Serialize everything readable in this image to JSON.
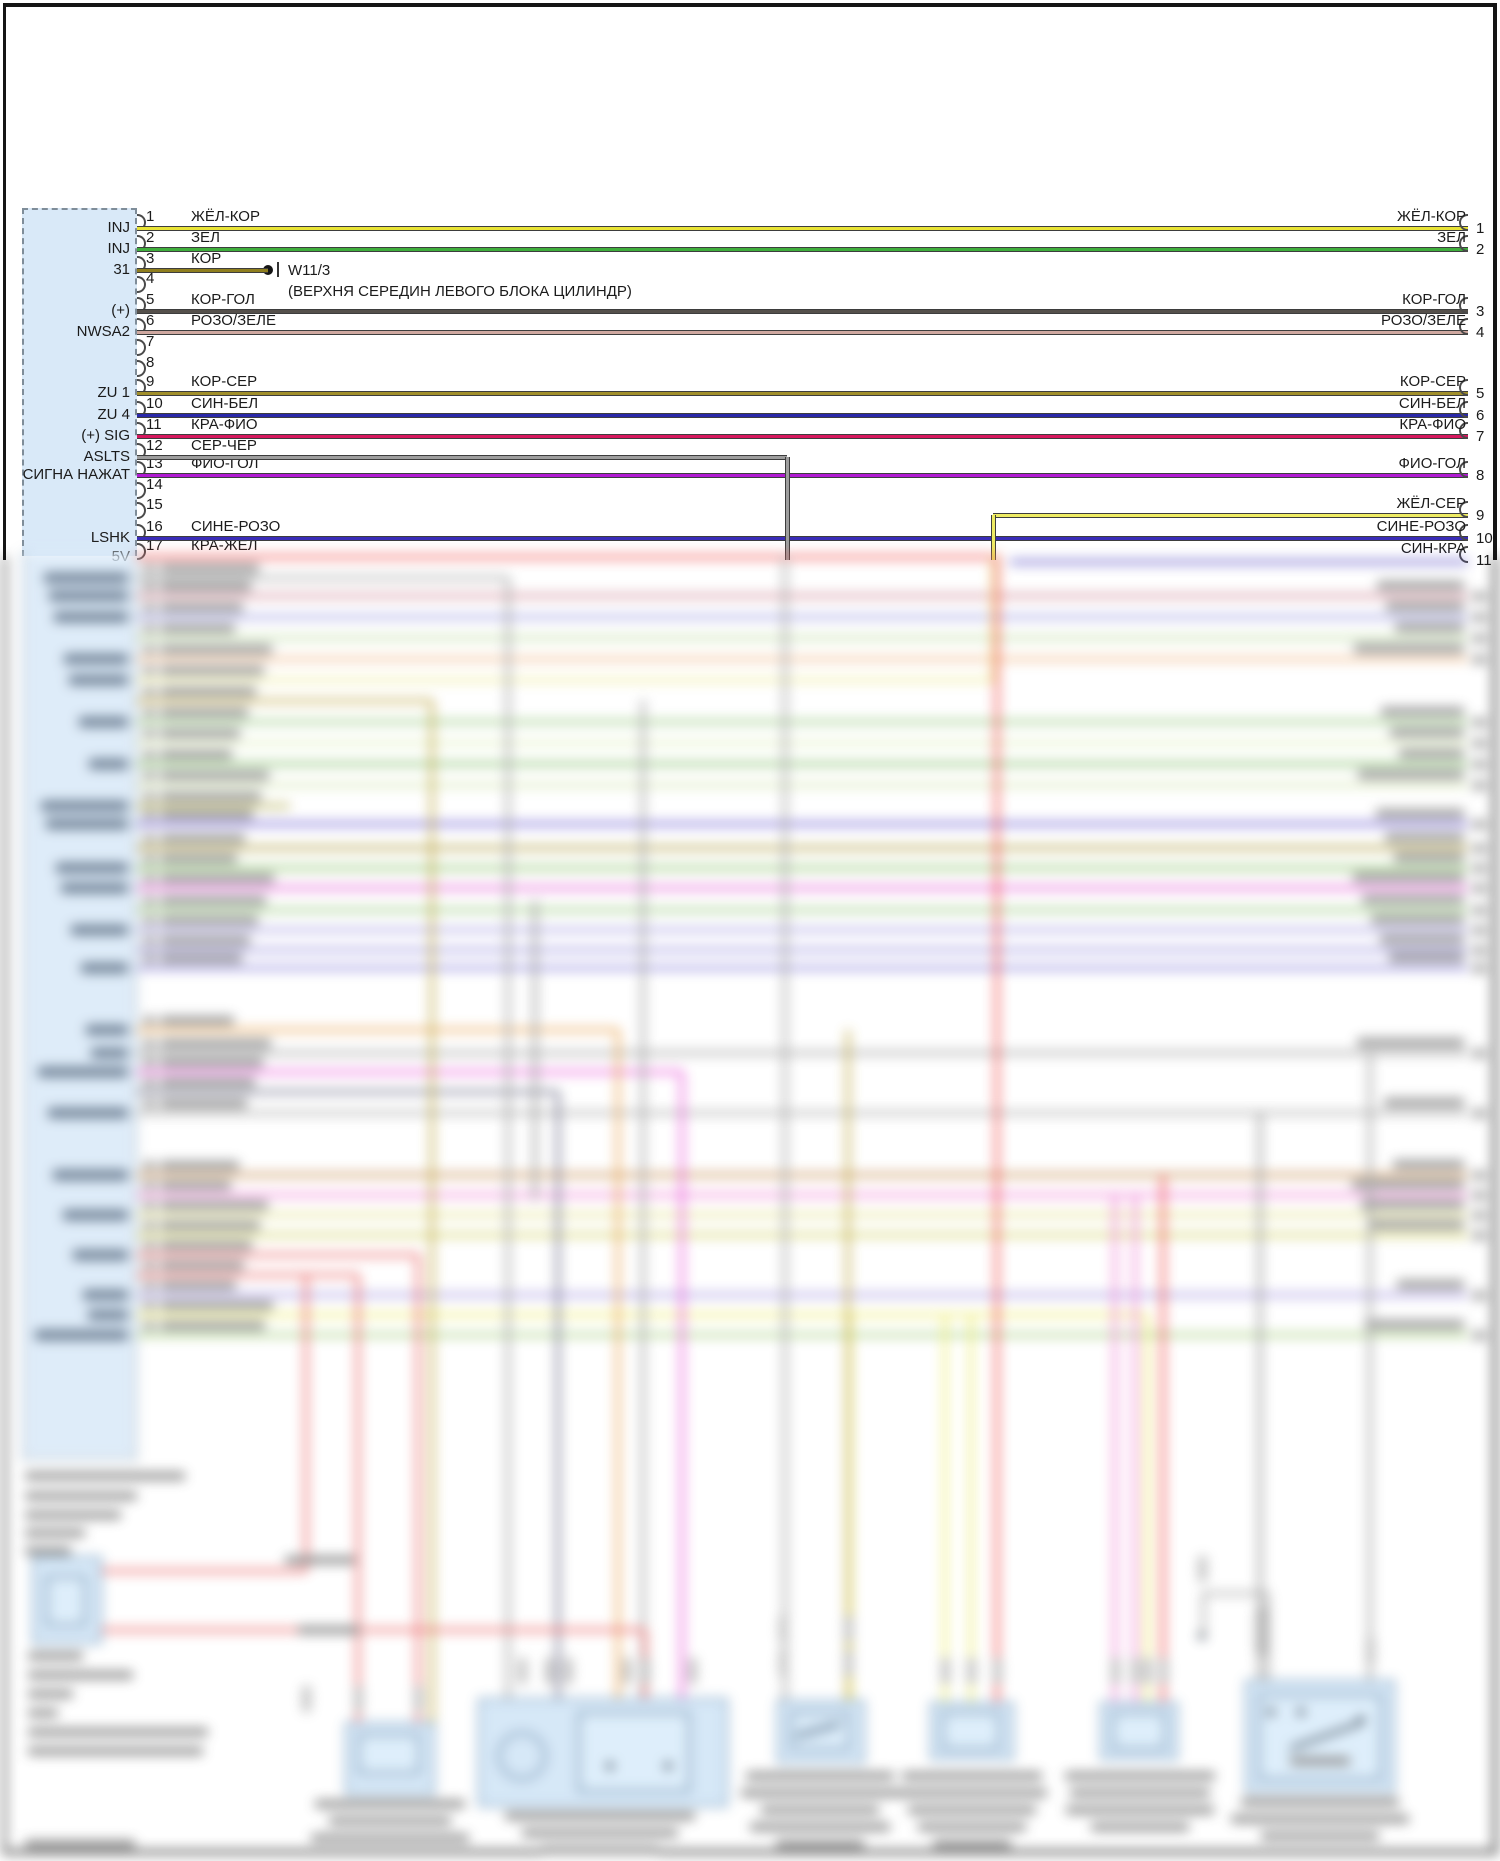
{
  "diagram": {
    "splice": {
      "code": "W11/3",
      "description": "(ВЕРХНЯ СЕРЕДИН ЛЕВОГО БЛОКА ЦИЛИНДР)"
    },
    "connector_left": {
      "fill_color": "#d9e9f8",
      "pins": [
        {
          "num": "1",
          "label": "INJ",
          "wire_name": "ЖЁЛ-КОР",
          "wire_color": "#e8e336"
        },
        {
          "num": "2",
          "label": "INJ",
          "wire_name": "ЗЕЛ",
          "wire_color": "#3fae3c"
        },
        {
          "num": "3",
          "label": "31",
          "wire_name": "КОР",
          "wire_color": "#8f7e1e"
        },
        {
          "num": "4",
          "label": "",
          "wire_name": "",
          "wire_color": ""
        },
        {
          "num": "5",
          "label": "(+)",
          "wire_name": "КОР-ГОЛ",
          "wire_color": "#55504b"
        },
        {
          "num": "6",
          "label": "NWSA2",
          "wire_name": "РОЗО/ЗЕЛЕ",
          "wire_color": "#cfa8a0"
        },
        {
          "num": "7",
          "label": "",
          "wire_name": "",
          "wire_color": ""
        },
        {
          "num": "8",
          "label": "",
          "wire_name": "",
          "wire_color": ""
        },
        {
          "num": "9",
          "label": "ZU 1",
          "wire_name": "КОР-СЕР",
          "wire_color": "#a18f2b"
        },
        {
          "num": "10",
          "label": "ZU 4",
          "wire_name": "СИН-БЕЛ",
          "wire_color": "#2a28a8"
        },
        {
          "num": "11",
          "label": "(+) SIG",
          "wire_name": "КРА-ФИО",
          "wire_color": "#d6175e"
        },
        {
          "num": "12",
          "label": "ASLTS",
          "wire_name": "СЕР-ЧЁР",
          "wire_color": "#9e9e9e"
        },
        {
          "num": "13",
          "label": "СИГНА НАЖАТ",
          "wire_name": "ФИО-ГОЛ",
          "wire_color": "#b01ad2"
        },
        {
          "num": "14",
          "label": "",
          "wire_name": "",
          "wire_color": ""
        },
        {
          "num": "15",
          "label": "",
          "wire_name": "",
          "wire_color": ""
        },
        {
          "num": "16",
          "label": "LSHK",
          "wire_name": "СИНЕ-РОЗО",
          "wire_color": "#3a2cb8"
        },
        {
          "num": "17",
          "label": "5V",
          "wire_name": "КРА-ЖЁЛ",
          "wire_color": "#ee4140"
        }
      ]
    },
    "connector_right": {
      "pins": [
        {
          "num": "1",
          "wire_name": "ЖЁЛ-КОР",
          "wire_color": "#e8e336"
        },
        {
          "num": "2",
          "wire_name": "ЗЕЛ",
          "wire_color": "#3fae3c"
        },
        {
          "num": "3",
          "wire_name": "КОР-ГОЛ",
          "wire_color": "#55504b"
        },
        {
          "num": "4",
          "wire_name": "РОЗО/ЗЕЛЕ",
          "wire_color": "#cfa8a0"
        },
        {
          "num": "5",
          "wire_name": "КОР-СЕР",
          "wire_color": "#a18f2b"
        },
        {
          "num": "6",
          "wire_name": "СИН-БЕЛ",
          "wire_color": "#2a28a8"
        },
        {
          "num": "7",
          "wire_name": "КРА-ФИО",
          "wire_color": "#d6175e"
        },
        {
          "num": "8",
          "wire_name": "ФИО-ГОЛ",
          "wire_color": "#b01ad2"
        },
        {
          "num": "9",
          "wire_name": "ЖЁЛ-СЕР",
          "wire_color": "#eeeb63"
        },
        {
          "num": "10",
          "wire_name": "СИНЕ-РОЗО",
          "wire_color": "#3a2cb8"
        },
        {
          "num": "11",
          "wire_name": "СИН-КРА",
          "wire_color": "#4a40c0"
        }
      ]
    }
  }
}
